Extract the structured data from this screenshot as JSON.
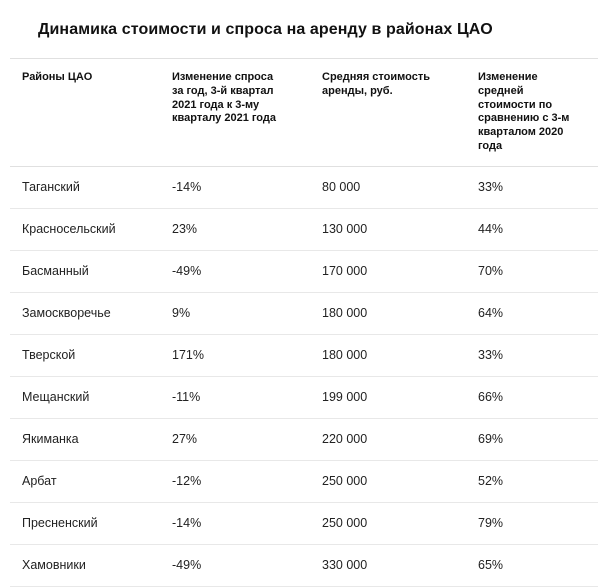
{
  "chart_data": {
    "type": "table",
    "title": "Динамика стоимости и спроса на аренду в районах ЦАО",
    "columns": [
      "Районы ЦАО",
      "Изменение спроса за год, 3-й квартал 2021 года к 3-му кварталу 2021 года",
      "Средняя стоимость аренды, руб.",
      "Изменение средней стоимости по сравнению с 3-м кварталом 2020 года"
    ],
    "rows": [
      [
        "Таганский",
        "-14%",
        "80 000",
        "33%"
      ],
      [
        "Красносельский",
        "23%",
        "130 000",
        "44%"
      ],
      [
        "Басманный",
        "-49%",
        "170 000",
        "70%"
      ],
      [
        "Замоскворечье",
        "9%",
        "180 000",
        "64%"
      ],
      [
        "Тверской",
        "171%",
        "180 000",
        "33%"
      ],
      [
        "Мещанский",
        "-11%",
        "199 000",
        "66%"
      ],
      [
        "Якиманка",
        "27%",
        "220 000",
        "69%"
      ],
      [
        "Арбат",
        "-12%",
        "250 000",
        "52%"
      ],
      [
        "Пресненский",
        "-14%",
        "250 000",
        "79%"
      ],
      [
        "Хамовники",
        "-49%",
        "330 000",
        "65%"
      ]
    ],
    "layout": {
      "legend": "none",
      "grid": "horizontal-dividers"
    }
  },
  "colors": {
    "background": "#ffffff",
    "text": "#1a1a1a",
    "divider": "#e0e0e0"
  }
}
